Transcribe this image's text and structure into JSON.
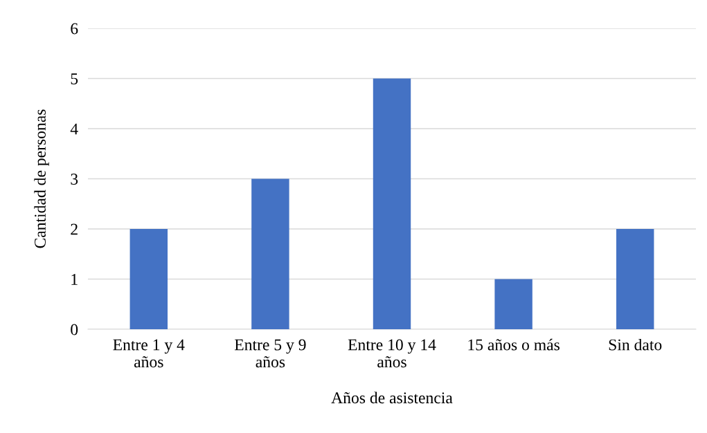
{
  "chart_data": {
    "type": "bar",
    "categories": [
      "Entre 1 y 4\naños",
      "Entre 5 y 9\naños",
      "Entre 10 y 14\naños",
      "15 años o más",
      "Sin dato"
    ],
    "values": [
      2,
      3,
      5,
      1,
      2
    ],
    "color": "#4472c4",
    "xlabel": "Años de asistencia",
    "ylabel": "Cantidad de personas",
    "ylim": [
      0,
      6
    ],
    "yticks": [
      0,
      1,
      2,
      3,
      4,
      5,
      6
    ],
    "grid": "y"
  }
}
